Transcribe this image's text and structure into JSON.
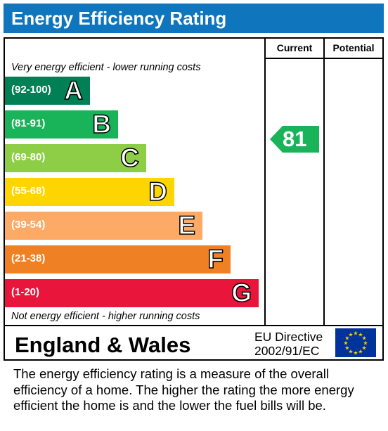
{
  "title": "Energy Efficiency Rating",
  "columns": {
    "current": "Current",
    "potential": "Potential"
  },
  "top_note": "Very energy efficient - lower running costs",
  "bottom_note": "Not energy efficient - higher running costs",
  "region": "England & Wales",
  "directive": {
    "line1": "EU Directive",
    "line2": "2002/91/EC"
  },
  "footer_text": "The energy efficiency rating is a measure of the overall efficiency of a home.  The higher the rating the more energy efficient the home is and the lower the fuel bills will be.",
  "chart_data": {
    "type": "bar",
    "bands": [
      {
        "letter": "A",
        "range": "(92-100)",
        "color": "#008054"
      },
      {
        "letter": "B",
        "range": "(81-91)",
        "color": "#19b459"
      },
      {
        "letter": "C",
        "range": "(69-80)",
        "color": "#8dce46"
      },
      {
        "letter": "D",
        "range": "(55-68)",
        "color": "#ffd500"
      },
      {
        "letter": "E",
        "range": "(39-54)",
        "color": "#fcaa65"
      },
      {
        "letter": "F",
        "range": "(21-38)",
        "color": "#ef8023"
      },
      {
        "letter": "G",
        "range": "(1-20)",
        "color": "#e9153b"
      }
    ],
    "current": {
      "value": 81,
      "band": "B",
      "color": "#19b459"
    },
    "potential": null
  }
}
